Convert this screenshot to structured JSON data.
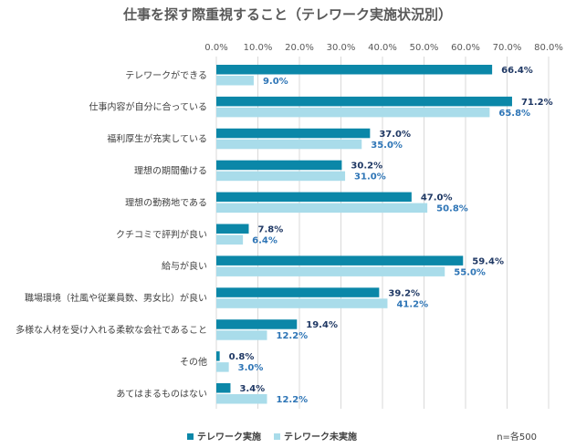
{
  "chart_data": {
    "type": "bar",
    "orientation": "horizontal",
    "title": "仕事を探す際重視すること（テレワーク実施状況別）",
    "categories": [
      "テレワークができる",
      "仕事内容が自分に合っている",
      "福利厚生が充実している",
      "理想の期間働ける",
      "理想の勤務地である",
      "クチコミで評判が良い",
      "給与が良い",
      "職場環境（社風や従業員数、男女比）が良い",
      "多様な人材を受け入れる柔軟な会社であること",
      "その他",
      "あてはまるものはない"
    ],
    "series": [
      {
        "name": "テレワーク実施",
        "color": "#0b87a8",
        "values": [
          66.4,
          71.2,
          37.0,
          30.2,
          47.0,
          7.8,
          59.4,
          39.2,
          19.4,
          0.8,
          3.4
        ],
        "labels": [
          "66.4%",
          "71.2%",
          "37.0%",
          "30.2%",
          "47.0%",
          "7.8%",
          "59.4%",
          "39.2%",
          "19.4%",
          "0.8%",
          "3.4%"
        ]
      },
      {
        "name": "テレワーク未実施",
        "color": "#a9dcea",
        "values": [
          9.0,
          65.8,
          35.0,
          31.0,
          50.8,
          6.4,
          55.0,
          41.2,
          12.2,
          3.0,
          12.2
        ],
        "labels": [
          "9.0%",
          "65.8%",
          "35.0%",
          "31.0%",
          "50.8%",
          "6.4%",
          "55.0%",
          "41.2%",
          "12.2%",
          "3.0%",
          "12.2%"
        ]
      }
    ],
    "xlim": [
      0,
      80
    ],
    "xticks": [
      0,
      10,
      20,
      30,
      40,
      50,
      60,
      70,
      80
    ],
    "xtick_labels": [
      "0.0%",
      "10.0%",
      "20.0%",
      "30.0%",
      "40.0%",
      "50.0%",
      "60.0%",
      "70.0%",
      "80.0%"
    ],
    "grid": true,
    "legend_position": "bottom-left"
  },
  "note": "n=各500"
}
